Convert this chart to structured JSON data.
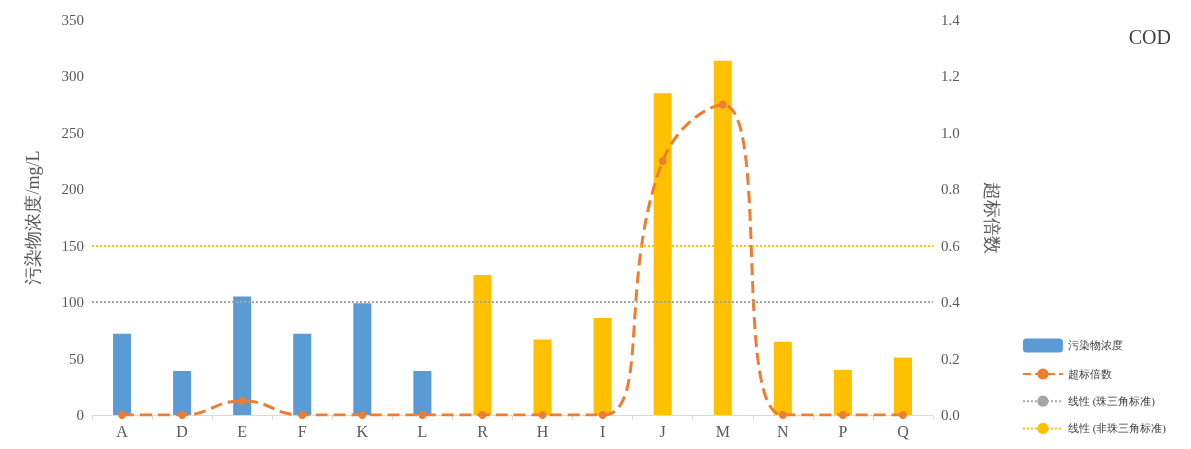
{
  "chart_data": {
    "type": "bar",
    "title": "COD",
    "ylabel": "污染物浓度/mg/L",
    "y2label": "超标倍数",
    "categories": [
      "A",
      "D",
      "E",
      "F",
      "K",
      "L",
      "R",
      "H",
      "I",
      "J",
      "M",
      "N",
      "P",
      "Q"
    ],
    "series": [
      {
        "name": "污染物浓度",
        "colors": [
          "#5b9bd5",
          "#5b9bd5",
          "#5b9bd5",
          "#5b9bd5",
          "#5b9bd5",
          "#5b9bd5",
          "#ffc000",
          "#ffc000",
          "#ffc000",
          "#ffc000",
          "#ffc000",
          "#ffc000",
          "#ffc000",
          "#ffc000"
        ],
        "values": [
          72,
          39,
          105,
          72,
          99,
          39,
          124,
          67,
          86,
          285,
          314,
          65,
          40,
          51
        ]
      },
      {
        "name": "超标倍数",
        "type": "line",
        "axis": "y2",
        "color": "#ed7d31",
        "line_style": "dashed",
        "marker": "circle",
        "values": [
          0,
          0,
          0.05,
          0,
          0,
          0,
          0,
          0,
          0,
          0.9,
          1.1,
          0,
          0,
          0
        ]
      }
    ],
    "ref_lines": [
      {
        "axis": "y",
        "value": 100,
        "label": "线性 (珠三角标准)",
        "color": "#a5a5a5",
        "line_style": "dotted"
      },
      {
        "axis": "y",
        "value": 150,
        "label": "线性 (非珠三角标准)",
        "color": "#ffc000",
        "line_style": "dotted"
      }
    ],
    "ylim": [
      0,
      350
    ],
    "yticks": [
      0,
      50,
      100,
      150,
      200,
      250,
      300,
      350
    ],
    "y2lim": [
      0,
      1.4
    ],
    "y2ticks": [
      {
        "value": 0,
        "label": "0.0"
      },
      0.2,
      0.4,
      0.6,
      0.8,
      {
        "value": 1,
        "label": "1.0"
      },
      1.2,
      1.4
    ],
    "grid": false,
    "legend": "right"
  }
}
